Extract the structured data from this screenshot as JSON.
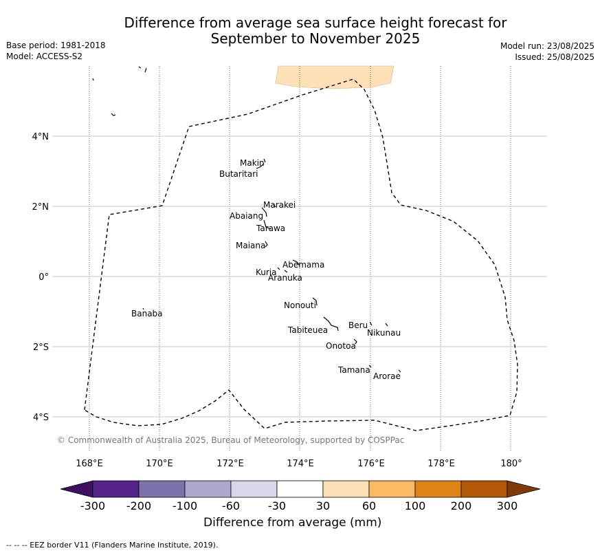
{
  "title_line1": "Difference from average sea surface height forecast for",
  "title_line2": "September to November 2025",
  "base_period": "Base period: 1981-2018",
  "model": "Model: ACCESS-S2",
  "model_run": "Model run: 23/08/2025",
  "issued": "Issued: 25/08/2025",
  "lon_labels": [
    "168°E",
    "170°E",
    "172°E",
    "174°E",
    "176°E",
    "178°E",
    "180°"
  ],
  "lat_labels": [
    "4°N",
    "2°N",
    "0°",
    "2°S",
    "4°S"
  ],
  "islands": [
    "Makin",
    "Butaritari",
    "Marakei",
    "Abaiang",
    "Tarawa",
    "Maiana",
    "Abemama",
    "Kuria",
    "Aranuka",
    "Banaba",
    "Nonouti",
    "Tabiteuea",
    "Beru",
    "Nikunau",
    "Onotoa",
    "Tamana",
    "Arorae"
  ],
  "copyright": "© Commonwealth of Australia 2025, Bureau of Meteorology, supported by COSPPac",
  "colorbar": {
    "label": "Difference from average (mm)",
    "ticks": [
      "-300",
      "-200",
      "-100",
      "-60",
      "-30",
      "30",
      "60",
      "100",
      "200",
      "300"
    ],
    "colors": [
      "#3f0f62",
      "#54238a",
      "#7f71ab",
      "#aea8cf",
      "#d8d8ea",
      "#ffffff",
      "#fee0b6",
      "#fdb863",
      "#e08214",
      "#b35806",
      "#7f3b08"
    ]
  },
  "footnote": "--  --  -- EEZ border V11 (Flanders Marine Institute, 2019).",
  "anomaly_region_color": "#fee0b6"
}
